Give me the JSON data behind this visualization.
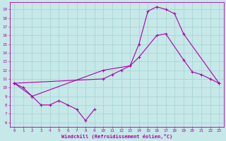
{
  "xlabel": "Windchill (Refroidissement éolien,°C)",
  "bg_color": "#c6e8e8",
  "line_color": "#aa00aa",
  "grid_color": "#b0d8d8",
  "xlim": [
    -0.5,
    23.5
  ],
  "ylim": [
    5.5,
    19.8
  ],
  "xticks": [
    0,
    1,
    2,
    3,
    4,
    5,
    6,
    7,
    8,
    9,
    10,
    11,
    12,
    13,
    14,
    15,
    16,
    17,
    18,
    19,
    20,
    21,
    22,
    23
  ],
  "yticks": [
    6,
    7,
    8,
    9,
    10,
    11,
    12,
    13,
    14,
    15,
    16,
    17,
    18,
    19
  ],
  "series": [
    {
      "x": [
        0,
        1,
        2,
        3,
        4,
        5,
        6,
        7,
        8,
        9
      ],
      "y": [
        10.5,
        10.0,
        9.0,
        8.0,
        8.0,
        8.5,
        8.0,
        7.5,
        6.2,
        7.5
      ]
    },
    {
      "x": [
        0,
        2,
        10,
        13,
        14,
        15,
        16,
        17,
        18,
        19,
        23
      ],
      "y": [
        10.5,
        9.0,
        12.0,
        12.5,
        15.0,
        18.8,
        19.3,
        19.0,
        18.5,
        16.2,
        10.5
      ]
    },
    {
      "x": [
        0,
        10,
        11,
        12,
        13,
        14,
        16,
        17,
        19,
        20,
        21,
        22,
        23
      ],
      "y": [
        10.5,
        11.0,
        11.5,
        12.0,
        12.5,
        13.5,
        16.0,
        16.2,
        13.2,
        11.8,
        11.5,
        11.0,
        10.5
      ]
    }
  ]
}
